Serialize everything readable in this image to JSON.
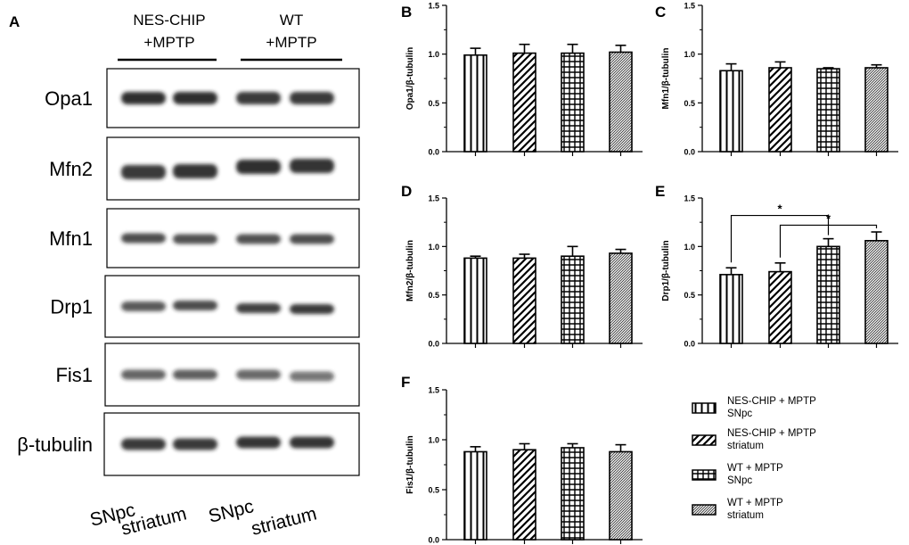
{
  "panel_a": {
    "letter": "A",
    "groups": [
      "NES-CHIP\n+MPTP",
      "WT\n+MPTP"
    ],
    "proteins": [
      "Opa1",
      "Mfn2",
      "Mfn1",
      "Drp1",
      "Fis1",
      "β-tubulin"
    ],
    "lanes": [
      "SNpc",
      "striatum",
      "SNpc",
      "striatum"
    ]
  },
  "legend": [
    "NES-CHIP + MPTP\nSNpc",
    "NES-CHIP + MPTP\nstriatum",
    "WT + MPTP\nSNpc",
    "WT + MPTP\nstriatum"
  ],
  "chart_data": [
    {
      "panel": "B",
      "type": "bar",
      "ylabel": "Opa1/β-tubulin",
      "ylim": [
        0,
        1.5
      ],
      "yticks": [
        "0.0",
        "0.5",
        "1.0",
        "1.5"
      ],
      "values": [
        0.99,
        1.01,
        1.01,
        1.02
      ],
      "errors": [
        0.07,
        0.09,
        0.09,
        0.07
      ],
      "significance": []
    },
    {
      "panel": "C",
      "type": "bar",
      "ylabel": "Mfn1/β-tubulin",
      "ylim": [
        0,
        1.5
      ],
      "yticks": [
        "0.0",
        "0.5",
        "1.0",
        "1.5"
      ],
      "values": [
        0.83,
        0.86,
        0.85,
        0.86
      ],
      "errors": [
        0.07,
        0.06,
        0.01,
        0.03
      ],
      "significance": []
    },
    {
      "panel": "D",
      "type": "bar",
      "ylabel": "Mfn2/β-tubulin",
      "ylim": [
        0,
        1.5
      ],
      "yticks": [
        "0.0",
        "0.5",
        "1.0",
        "1.5"
      ],
      "values": [
        0.88,
        0.88,
        0.9,
        0.93
      ],
      "errors": [
        0.02,
        0.04,
        0.1,
        0.04
      ],
      "significance": []
    },
    {
      "panel": "E",
      "type": "bar",
      "ylabel": "Drp1/β-tubulin",
      "ylim": [
        0,
        1.5
      ],
      "yticks": [
        "0.0",
        "0.5",
        "1.0",
        "1.5"
      ],
      "values": [
        0.71,
        0.74,
        1.0,
        1.06
      ],
      "errors": [
        0.07,
        0.09,
        0.08,
        0.09
      ],
      "significance": [
        {
          "from": 0,
          "to": 2,
          "y": 1.32,
          "label": "*"
        },
        {
          "from": 1,
          "to": 3,
          "y": 1.22,
          "label": "*"
        }
      ]
    },
    {
      "panel": "F",
      "type": "bar",
      "ylabel": "Fis1/β-tubulin",
      "ylim": [
        0,
        1.5
      ],
      "yticks": [
        "0.0",
        "0.5",
        "1.0",
        "1.5"
      ],
      "values": [
        0.88,
        0.9,
        0.92,
        0.88
      ],
      "errors": [
        0.05,
        0.06,
        0.04,
        0.07
      ],
      "significance": []
    }
  ]
}
